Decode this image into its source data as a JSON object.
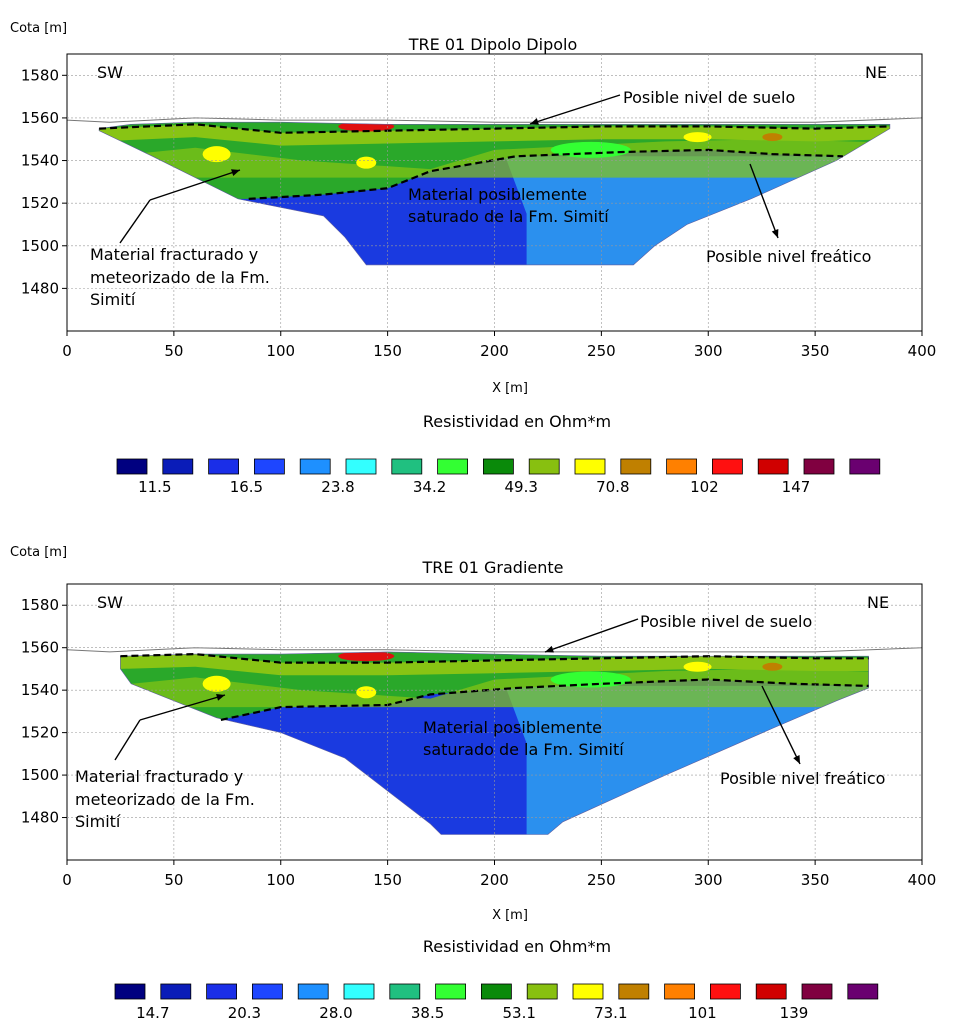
{
  "chart_data": [
    {
      "type": "heatmap",
      "title": "TRE 01 Dipolo Dipolo",
      "ylabel": "Cota [m]",
      "xlabel": "X [m]",
      "xlim": [
        0,
        400
      ],
      "ylim": [
        1460,
        1590
      ],
      "xticks": [
        0,
        50,
        100,
        150,
        200,
        250,
        300,
        350,
        400
      ],
      "yticks": [
        1480,
        1500,
        1520,
        1540,
        1560,
        1580
      ],
      "corner_labels": {
        "left": "SW",
        "right": "NE"
      },
      "annotations": {
        "soil": "Posible nivel de suelo",
        "water": "Posible nivel freático",
        "fractured": [
          "Material fracturado y",
          "meteorizado de la Fm.",
          "Simití"
        ],
        "saturated": [
          "Material posiblemente",
          "saturado de la Fm. Simití"
        ]
      },
      "legend": {
        "title": "Resistividad en Ohm*m",
        "labels": [
          "11.5",
          "16.5",
          "23.8",
          "34.2",
          "49.3",
          "70.8",
          "102",
          "147"
        ]
      },
      "section": {
        "top": [
          [
            15,
            1555
          ],
          [
            30,
            1557
          ],
          [
            60,
            1558
          ],
          [
            100,
            1558
          ],
          [
            150,
            1557
          ],
          [
            200,
            1557
          ],
          [
            250,
            1557
          ],
          [
            300,
            1557
          ],
          [
            350,
            1557
          ],
          [
            385,
            1557
          ]
        ],
        "bottom": [
          [
            15,
            1554
          ],
          [
            40,
            1542
          ],
          [
            80,
            1522
          ],
          [
            120,
            1514
          ],
          [
            130,
            1504
          ],
          [
            140,
            1491
          ],
          [
            265,
            1491
          ],
          [
            275,
            1500
          ],
          [
            290,
            1510
          ],
          [
            320,
            1522
          ],
          [
            360,
            1540
          ],
          [
            385,
            1555
          ]
        ]
      },
      "soil_line": [
        [
          15,
          1555
        ],
        [
          60,
          1557
        ],
        [
          100,
          1553
        ],
        [
          150,
          1554
        ],
        [
          200,
          1555
        ],
        [
          250,
          1556
        ],
        [
          300,
          1556
        ],
        [
          350,
          1555
        ],
        [
          385,
          1556
        ]
      ],
      "water_line": [
        [
          85,
          1522
        ],
        [
          120,
          1524
        ],
        [
          150,
          1527
        ],
        [
          170,
          1535
        ],
        [
          210,
          1542
        ],
        [
          260,
          1544
        ],
        [
          300,
          1545
        ],
        [
          330,
          1543
        ],
        [
          363,
          1542
        ]
      ],
      "ground_profile": [
        [
          0,
          1559
        ],
        [
          20,
          1558
        ],
        [
          60,
          1560
        ],
        [
          100,
          1559
        ],
        [
          150,
          1559
        ],
        [
          200,
          1558
        ],
        [
          250,
          1558
        ],
        [
          300,
          1558
        ],
        [
          350,
          1558
        ],
        [
          400,
          1560
        ]
      ]
    },
    {
      "type": "heatmap",
      "title": "TRE 01 Gradiente",
      "ylabel": "Cota [m]",
      "xlabel": "X [m]",
      "xlim": [
        0,
        400
      ],
      "ylim": [
        1460,
        1590
      ],
      "xticks": [
        0,
        50,
        100,
        150,
        200,
        250,
        300,
        350,
        400
      ],
      "yticks": [
        1480,
        1500,
        1520,
        1540,
        1560,
        1580
      ],
      "corner_labels": {
        "left": "SW",
        "right": "NE"
      },
      "annotations": {
        "soil": "Posible nivel de suelo",
        "water": "Posible nivel freático",
        "fractured": [
          "Material fracturado y",
          "meteorizado de la Fm.",
          "Simití"
        ],
        "saturated": [
          "Material posiblemente",
          "saturado de la Fm. Simití"
        ]
      },
      "legend": {
        "title": "Resistividad en Ohm*m",
        "labels": [
          "14.7",
          "20.3",
          "28.0",
          "38.5",
          "53.1",
          "73.1",
          "101",
          "139"
        ]
      },
      "section": {
        "top": [
          [
            25,
            1556
          ],
          [
            60,
            1557
          ],
          [
            100,
            1557
          ],
          [
            150,
            1558
          ],
          [
            200,
            1557
          ],
          [
            250,
            1556
          ],
          [
            300,
            1556
          ],
          [
            350,
            1556
          ],
          [
            375,
            1556
          ]
        ],
        "bottom": [
          [
            25,
            1550
          ],
          [
            30,
            1543
          ],
          [
            70,
            1527
          ],
          [
            100,
            1520
          ],
          [
            130,
            1508
          ],
          [
            170,
            1477
          ],
          [
            175,
            1472
          ],
          [
            225,
            1472
          ],
          [
            232,
            1478
          ],
          [
            280,
            1500
          ],
          [
            330,
            1522
          ],
          [
            360,
            1535
          ],
          [
            375,
            1541
          ]
        ]
      },
      "soil_line": [
        [
          25,
          1556
        ],
        [
          60,
          1557
        ],
        [
          100,
          1553
        ],
        [
          150,
          1553
        ],
        [
          200,
          1554
        ],
        [
          250,
          1555
        ],
        [
          300,
          1556
        ],
        [
          350,
          1555
        ],
        [
          375,
          1555
        ]
      ],
      "water_line": [
        [
          72,
          1526
        ],
        [
          100,
          1532
        ],
        [
          150,
          1533
        ],
        [
          170,
          1538
        ],
        [
          210,
          1541
        ],
        [
          250,
          1543
        ],
        [
          300,
          1545
        ],
        [
          340,
          1543
        ],
        [
          375,
          1542
        ]
      ],
      "ground_profile": [
        [
          0,
          1559
        ],
        [
          20,
          1558
        ],
        [
          60,
          1560
        ],
        [
          100,
          1559
        ],
        [
          150,
          1559
        ],
        [
          200,
          1558
        ],
        [
          250,
          1558
        ],
        [
          300,
          1558
        ],
        [
          350,
          1558
        ],
        [
          400,
          1560
        ]
      ]
    }
  ],
  "palette": [
    "#000080",
    "#0a1cb8",
    "#1a2ee8",
    "#1e46ff",
    "#1e90ff",
    "#33ffff",
    "#20c080",
    "#33ff33",
    "#0a8a0a",
    "#88c010",
    "#ffff00",
    "#c08000",
    "#ff8000",
    "#ff1010",
    "#d00000",
    "#800040",
    "#6a0070"
  ],
  "section_colors": {
    "deep": "#1a3ae0",
    "saturated": "#2b90ee",
    "weathered": "#2aa82a",
    "soil_band": "#88c414",
    "surface_red": "#e01010"
  }
}
